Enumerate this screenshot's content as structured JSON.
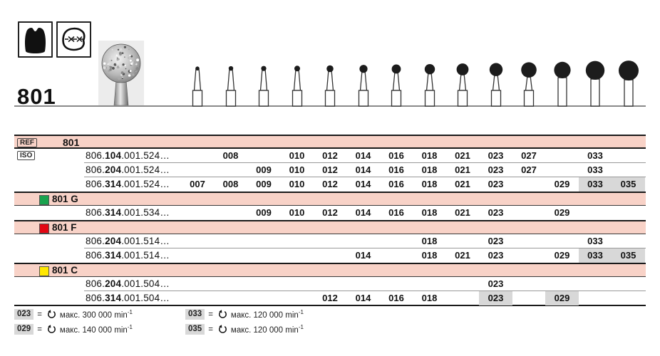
{
  "header": {
    "product_number": "801",
    "icons": [
      "crown-icon",
      "occlusal-surface-icon"
    ]
  },
  "size_columns": [
    "007",
    "008",
    "009",
    "010",
    "012",
    "014",
    "016",
    "018",
    "021",
    "023",
    "027",
    "029",
    "033",
    "035"
  ],
  "table": {
    "ref_label": "REF",
    "ref_value": "801",
    "iso_label": "ISO",
    "sections": [
      {
        "header": null,
        "rows": [
          {
            "code_prefix": "806.",
            "code_bold": "104",
            "code_suffix": ".001.524…",
            "sizes": [
              "008",
              "010",
              "012",
              "014",
              "016",
              "018",
              "021",
              "023",
              "027",
              "033"
            ],
            "gray": []
          },
          {
            "code_prefix": "806.",
            "code_bold": "204",
            "code_suffix": ".001.524…",
            "sizes": [
              "009",
              "010",
              "012",
              "014",
              "016",
              "018",
              "021",
              "023",
              "027",
              "033"
            ],
            "gray": []
          },
          {
            "code_prefix": "806.",
            "code_bold": "314",
            "code_suffix": ".001.524…",
            "sizes": [
              "007",
              "008",
              "009",
              "010",
              "012",
              "014",
              "016",
              "018",
              "021",
              "023",
              "029",
              "033",
              "035"
            ],
            "gray": [
              "033",
              "035"
            ]
          }
        ]
      },
      {
        "header": {
          "label": "801 G",
          "color_key": "green"
        },
        "rows": [
          {
            "code_prefix": "806.",
            "code_bold": "314",
            "code_suffix": ".001.534…",
            "sizes": [
              "009",
              "010",
              "012",
              "014",
              "016",
              "018",
              "021",
              "023",
              "029"
            ],
            "gray": []
          }
        ]
      },
      {
        "header": {
          "label": "801 F",
          "color_key": "red"
        },
        "rows": [
          {
            "code_prefix": "806.",
            "code_bold": "204",
            "code_suffix": ".001.514…",
            "sizes": [
              "018",
              "023",
              "033"
            ],
            "gray": []
          },
          {
            "code_prefix": "806.",
            "code_bold": "314",
            "code_suffix": ".001.514…",
            "sizes": [
              "014",
              "018",
              "021",
              "023",
              "029",
              "033",
              "035"
            ],
            "gray": [
              "033",
              "035"
            ]
          }
        ]
      },
      {
        "header": {
          "label": "801 C",
          "color_key": "yellow"
        },
        "rows": [
          {
            "code_prefix": "806.",
            "code_bold": "204",
            "code_suffix": ".001.504…",
            "sizes": [
              "023"
            ],
            "gray": []
          },
          {
            "code_prefix": "806.",
            "code_bold": "314",
            "code_suffix": ".001.504…",
            "sizes": [
              "012",
              "014",
              "016",
              "018",
              "023",
              "029"
            ],
            "gray": [
              "023",
              "029"
            ]
          }
        ]
      }
    ]
  },
  "legend": {
    "equals": "=",
    "items": [
      {
        "size": "023",
        "text": "макс. 300 000 min",
        "sup": "-1"
      },
      {
        "size": "033",
        "text": "макс. 120 000 min",
        "sup": "-1"
      },
      {
        "size": "029",
        "text": "макс. 140 000 min",
        "sup": "-1"
      },
      {
        "size": "035",
        "text": "макс. 120 000 min",
        "sup": "-1"
      }
    ]
  },
  "colors": {
    "pink_row": "#f8d2c7",
    "gray_cell": "#d8d8d8",
    "green": "#18a24d",
    "red": "#e30613",
    "yellow": "#ffe800"
  }
}
